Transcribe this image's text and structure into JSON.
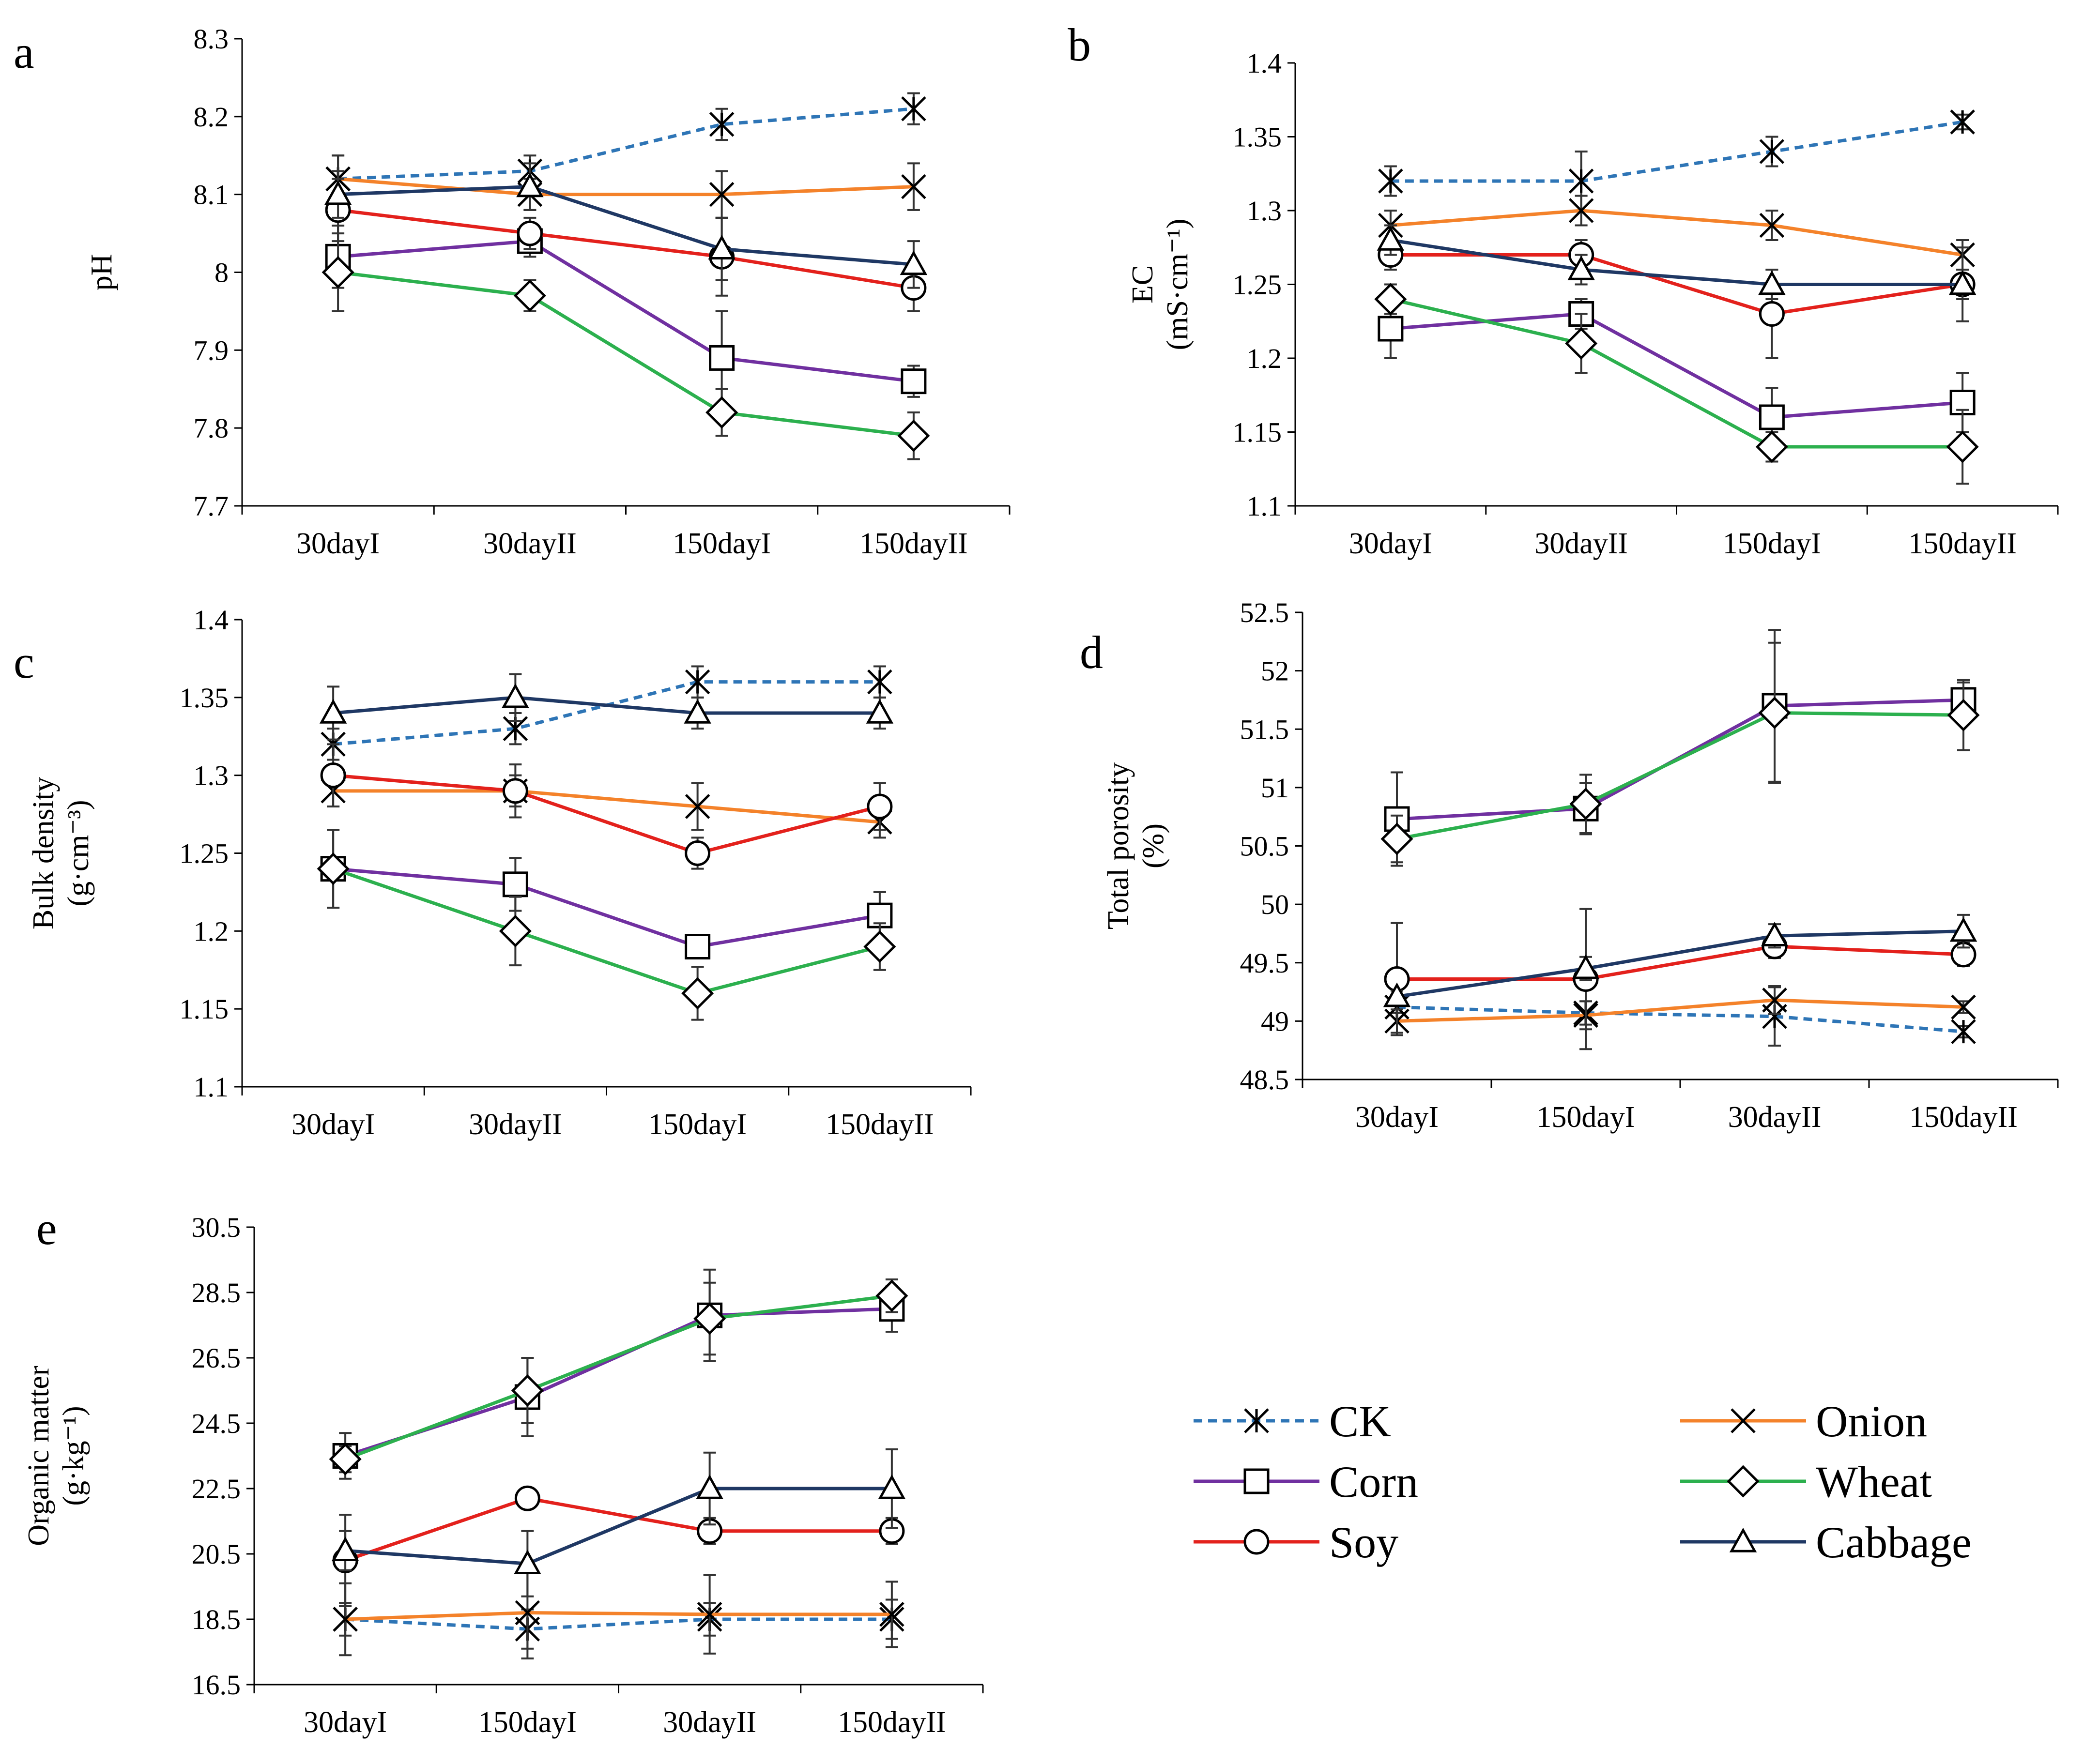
{
  "chart_data": [
    {
      "type": "line",
      "panel": "a",
      "ylabel": "pH",
      "ylabel_sub": "",
      "categories": [
        "30dayI",
        "30dayII",
        "150dayI",
        "150dayII"
      ],
      "ylim": [
        7.7,
        8.3
      ],
      "yticks": [
        "7.7",
        "7.8",
        "7.9",
        "8",
        "8.1",
        "8.2",
        "8.3"
      ],
      "series": [
        {
          "name": "CK",
          "values": [
            8.12,
            8.13,
            8.19,
            8.21
          ],
          "errors": [
            0.03,
            0.02,
            0.02,
            0.02
          ]
        },
        {
          "name": "Onion",
          "values": [
            8.12,
            8.1,
            8.1,
            8.11
          ],
          "errors": [
            0.03,
            0.02,
            0.03,
            0.03
          ]
        },
        {
          "name": "Corn",
          "values": [
            8.02,
            8.04,
            7.89,
            7.86
          ],
          "errors": [
            0.04,
            0.02,
            0.06,
            0.02
          ]
        },
        {
          "name": "Wheat",
          "values": [
            8.0,
            7.97,
            7.82,
            7.79
          ],
          "errors": [
            0.05,
            0.02,
            0.03,
            0.03
          ]
        },
        {
          "name": "Soy",
          "values": [
            8.08,
            8.05,
            8.02,
            7.98
          ],
          "errors": [
            0.04,
            0.02,
            0.05,
            0.03
          ]
        },
        {
          "name": "Cabbage",
          "values": [
            8.1,
            8.11,
            8.03,
            8.01
          ],
          "errors": [
            0.03,
            0.03,
            0.04,
            0.03
          ]
        }
      ]
    },
    {
      "type": "line",
      "panel": "b",
      "ylabel": "EC",
      "ylabel_sub": "(mS·cm⁻¹)",
      "categories": [
        "30dayI",
        "30dayII",
        "150dayI",
        "150dayII"
      ],
      "ylim": [
        1.1,
        1.4
      ],
      "yticks": [
        "1.1",
        "1.15",
        "1.2",
        "1.25",
        "1.3",
        "1.35",
        "1.4"
      ],
      "series": [
        {
          "name": "CK",
          "values": [
            1.32,
            1.32,
            1.34,
            1.36
          ],
          "errors": [
            0.01,
            0.02,
            0.01,
            0.005
          ]
        },
        {
          "name": "Onion",
          "values": [
            1.29,
            1.3,
            1.29,
            1.27
          ],
          "errors": [
            0.01,
            0.01,
            0.01,
            0.01
          ]
        },
        {
          "name": "Corn",
          "values": [
            1.22,
            1.23,
            1.16,
            1.17
          ],
          "errors": [
            0.02,
            0.01,
            0.02,
            0.02
          ]
        },
        {
          "name": "Wheat",
          "values": [
            1.24,
            1.21,
            1.14,
            1.14
          ],
          "errors": [
            0.01,
            0.02,
            0.01,
            0.025
          ]
        },
        {
          "name": "Soy",
          "values": [
            1.27,
            1.27,
            1.23,
            1.25
          ],
          "errors": [
            0.01,
            0.01,
            0.03,
            0.025
          ]
        },
        {
          "name": "Cabbage",
          "values": [
            1.28,
            1.26,
            1.25,
            1.25
          ],
          "errors": [
            0.01,
            0.01,
            0.01,
            0.01
          ]
        }
      ]
    },
    {
      "type": "line",
      "panel": "c",
      "ylabel": "Bulk density",
      "ylabel_sub": "(g·cm⁻³)",
      "categories": [
        "30dayI",
        "30dayII",
        "150dayI",
        "150dayII"
      ],
      "ylim": [
        1.1,
        1.4
      ],
      "yticks": [
        "1.1",
        "1.15",
        "1.2",
        "1.25",
        "1.3",
        "1.35",
        "1.4"
      ],
      "series": [
        {
          "name": "CK",
          "values": [
            1.32,
            1.33,
            1.36,
            1.36
          ],
          "errors": [
            0.01,
            0.01,
            0.01,
            0.01
          ]
        },
        {
          "name": "Onion",
          "values": [
            1.29,
            1.29,
            1.28,
            1.27
          ],
          "errors": [
            0.01,
            0.01,
            0.015,
            0.01
          ]
        },
        {
          "name": "Corn",
          "values": [
            1.24,
            1.23,
            1.19,
            1.21
          ],
          "errors": [
            0.025,
            0.017,
            0.005,
            0.015
          ]
        },
        {
          "name": "Wheat",
          "values": [
            1.24,
            1.2,
            1.16,
            1.19
          ],
          "errors": [
            0.025,
            0.022,
            0.017,
            0.015
          ]
        },
        {
          "name": "Soy",
          "values": [
            1.3,
            1.29,
            1.25,
            1.28
          ],
          "errors": [
            0.02,
            0.017,
            0.01,
            0.015
          ]
        },
        {
          "name": "Cabbage",
          "values": [
            1.34,
            1.35,
            1.34,
            1.34
          ],
          "errors": [
            0.017,
            0.015,
            0.01,
            0.01
          ]
        }
      ]
    },
    {
      "type": "line",
      "panel": "d",
      "ylabel": "Total porosity",
      "ylabel_sub": "(%)",
      "categories": [
        "30dayI",
        "150dayI",
        "30dayII",
        "150dayII"
      ],
      "ylim": [
        48.5,
        52.5
      ],
      "yticks": [
        "48.5",
        "49",
        "49.5",
        "50",
        "50.5",
        "51",
        "51.5",
        "52",
        "52.5"
      ],
      "series": [
        {
          "name": "CK",
          "values": [
            49.12,
            49.07,
            49.04,
            48.91
          ],
          "errors": [
            0.05,
            0.1,
            0.25,
            0.05
          ]
        },
        {
          "name": "Onion",
          "values": [
            49.0,
            49.05,
            49.18,
            49.12
          ],
          "errors": [
            0.1,
            0.12,
            0.12,
            0.05
          ]
        },
        {
          "name": "Corn",
          "values": [
            50.73,
            50.82,
            51.7,
            51.75
          ],
          "errors": [
            0.4,
            0.22,
            0.65,
            0.15
          ]
        },
        {
          "name": "Wheat",
          "values": [
            50.56,
            50.86,
            51.64,
            51.62
          ],
          "errors": [
            0.2,
            0.25,
            0.6,
            0.3
          ]
        },
        {
          "name": "Soy",
          "values": [
            49.36,
            49.36,
            49.64,
            49.57
          ],
          "errors": [
            0.48,
            0.6,
            0.1,
            0.1
          ]
        },
        {
          "name": "Cabbage",
          "values": [
            49.21,
            49.45,
            49.73,
            49.77
          ],
          "errors": [
            0.05,
            0.1,
            0.1,
            0.14
          ]
        }
      ]
    },
    {
      "type": "line",
      "panel": "e",
      "ylabel": "Organic matter",
      "ylabel_sub": "(g·kg⁻¹)",
      "categories": [
        "30dayI",
        "150dayI",
        "30dayII",
        "150dayII"
      ],
      "ylim": [
        16.5,
        30.5
      ],
      "yticks": [
        "16.5",
        "18.5",
        "20.5",
        "22.5",
        "24.5",
        "26.5",
        "28.5",
        "30.5"
      ],
      "series": [
        {
          "name": "CK",
          "values": [
            18.5,
            18.2,
            18.5,
            18.5
          ],
          "errors": [
            0.5,
            0.6,
            0.5,
            0.6
          ]
        },
        {
          "name": "Onion",
          "values": [
            18.5,
            18.7,
            18.65,
            18.65
          ],
          "errors": [
            1.1,
            1.4,
            1.2,
            1.0
          ]
        },
        {
          "name": "Corn",
          "values": [
            23.5,
            25.3,
            27.8,
            28.0
          ],
          "errors": [
            0.7,
            1.2,
            1.4,
            0.7
          ]
        },
        {
          "name": "Wheat",
          "values": [
            23.4,
            25.5,
            27.7,
            28.4
          ],
          "errors": [
            0.4,
            1.0,
            1.1,
            0.5
          ]
        },
        {
          "name": "Soy",
          "values": [
            20.3,
            22.2,
            21.2,
            21.2
          ],
          "errors": [
            1.4,
            0.3,
            0.4,
            0.4
          ]
        },
        {
          "name": "Cabbage",
          "values": [
            20.6,
            20.2,
            22.5,
            22.5
          ],
          "errors": [
            0.6,
            1.0,
            1.1,
            1.2
          ]
        }
      ]
    }
  ],
  "legend": [
    {
      "name": "CK",
      "color": "#2e75b6",
      "marker": "asterisk",
      "dashed": true
    },
    {
      "name": "Onion",
      "color": "#f4822a",
      "marker": "x",
      "dashed": false
    },
    {
      "name": "Corn",
      "color": "#7030a0",
      "marker": "square",
      "dashed": false
    },
    {
      "name": "Wheat",
      "color": "#2cb04e",
      "marker": "diamond",
      "dashed": false
    },
    {
      "name": "Soy",
      "color": "#e3211c",
      "marker": "circle",
      "dashed": false
    },
    {
      "name": "Cabbage",
      "color": "#1f3864",
      "marker": "triangle",
      "dashed": false
    }
  ]
}
